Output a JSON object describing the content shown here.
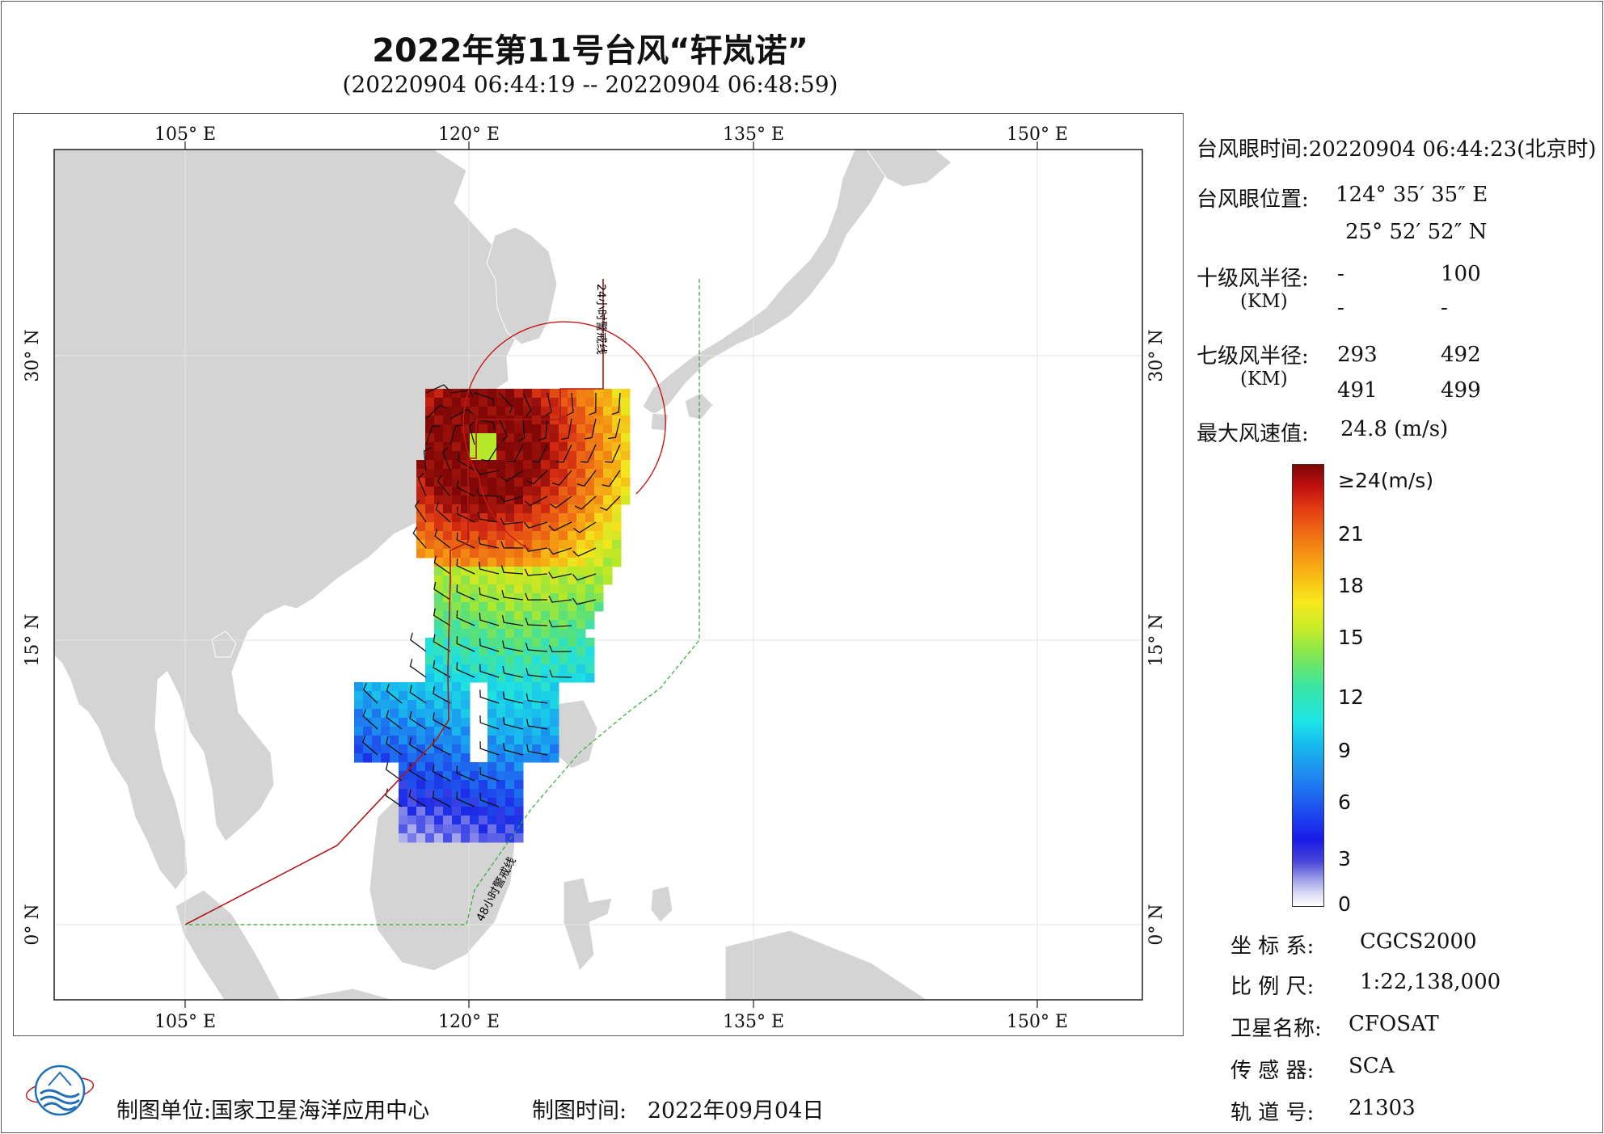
{
  "header": {
    "title": "2022年第11号台风“轩岚诺”",
    "subtitle": "(20220904 06:44:19 -- 20220904 06:48:59)"
  },
  "map": {
    "lon_labels": [
      "105° E",
      "120° E",
      "135° E",
      "150° E"
    ],
    "lat_labels": [
      "30° N",
      "15° N",
      "0° N"
    ],
    "warning_24h_label": "24小时警戒线",
    "warning_48h_label": "48小时警戒线",
    "colors": {
      "land": "#d4d4d4",
      "sea": "#ffffff",
      "warning_24h": "#b01818",
      "warning_48h": "#33aa33"
    }
  },
  "info": {
    "eye_time_label": "台风眼时间:",
    "eye_time_value": "20220904 06:44:23(北京时)",
    "eye_pos_label": "台风眼位置:",
    "eye_lon": "124° 35′ 35″ E",
    "eye_lat": "25° 52′ 52″ N",
    "r10_label": "十级风半径:",
    "r10_unit": "(KM)",
    "r10_values": [
      "-",
      "100",
      "-",
      "-"
    ],
    "r7_label": "七级风半径:",
    "r7_unit": "(KM)",
    "r7_values": [
      "293",
      "492",
      "491",
      "499"
    ],
    "max_wind_label": "最大风速值:",
    "max_wind_value": "24.8  (m/s)"
  },
  "legend": {
    "ticks": [
      "≥24(m/s)",
      "21",
      "18",
      "15",
      "12",
      "9",
      "6",
      "3",
      "0"
    ]
  },
  "meta": {
    "crs_label": "坐 标 系:",
    "crs_value": "CGCS2000",
    "scale_label": "比 例 尺:",
    "scale_value": "1:22,138,000",
    "satellite_label": "卫星名称:",
    "satellite_value": "CFOSAT",
    "sensor_label": "传 感 器:",
    "sensor_value": "SCA",
    "orbit_label": "轨 道 号:",
    "orbit_value": "21303"
  },
  "footer": {
    "maker_label": "制图单位:",
    "maker_value": "国家卫星海洋应用中心",
    "date_label": "制图时间:",
    "date_value": "2022年09月04日"
  }
}
